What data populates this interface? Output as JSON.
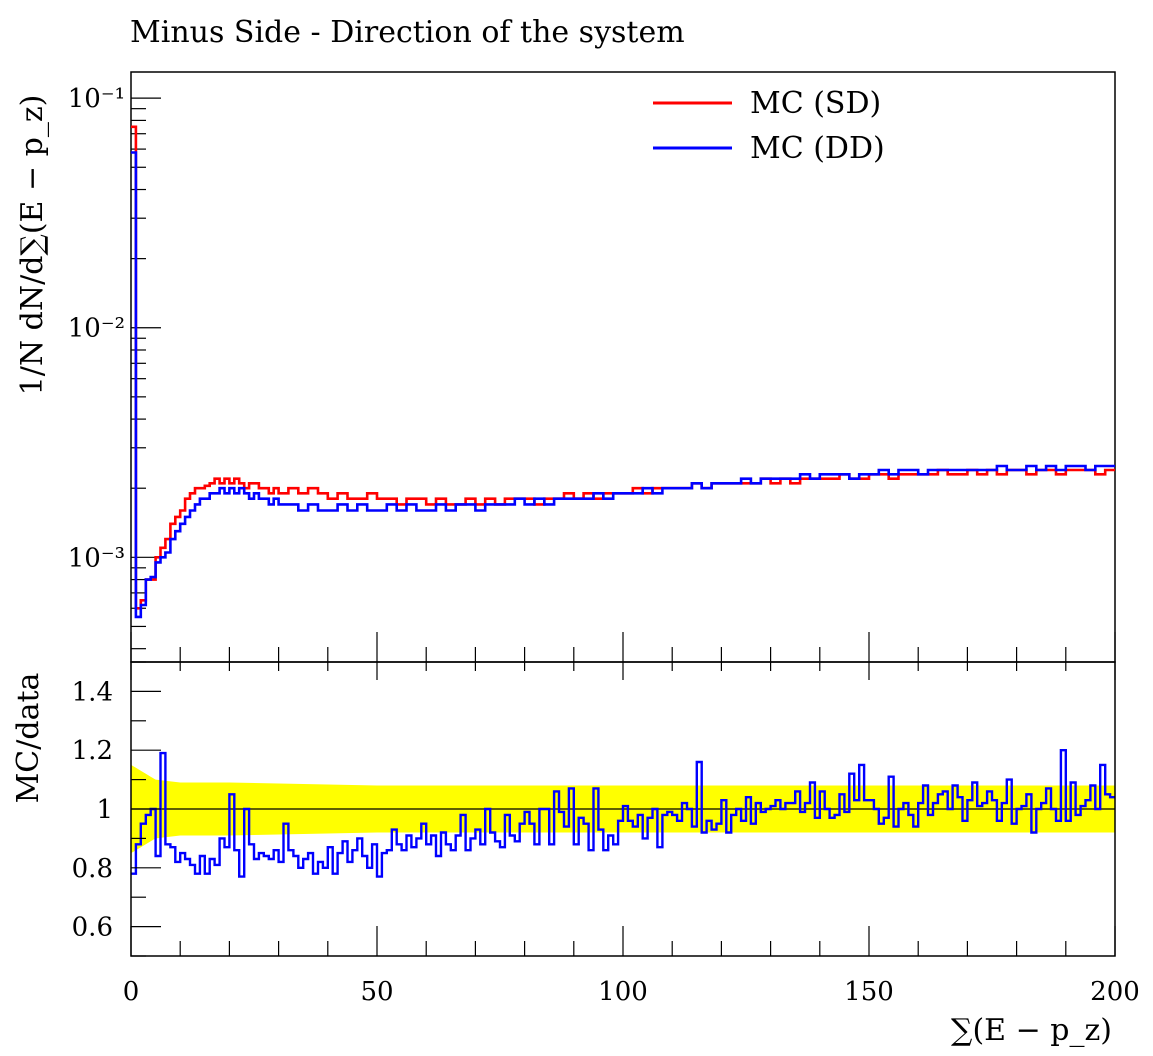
{
  "chart_data": [
    {
      "type": "line",
      "title": "Minus Side - Direction of the system",
      "ylabel": "1/N dN/d∑(E − p_z)",
      "xlabel": "",
      "x_range": [
        0,
        200
      ],
      "ylim": [
        0.00035,
        0.13
      ],
      "y_scale": "log",
      "y_ticks": [
        0.001,
        0.01,
        0.1
      ],
      "y_tick_labels": [
        "10⁻³",
        "10⁻²",
        "10⁻¹"
      ],
      "legend_position": "top-right",
      "series": [
        {
          "name": "MC (SD)",
          "color": "#ff0000",
          "x": [
            0,
            1,
            2,
            3,
            4,
            5,
            6,
            7,
            8,
            9,
            10,
            11,
            12,
            13,
            14,
            15,
            16,
            17,
            18,
            19,
            20,
            21,
            22,
            23,
            24,
            25,
            26,
            27,
            28,
            29,
            30,
            32,
            34,
            36,
            38,
            40,
            42,
            44,
            46,
            48,
            50,
            52,
            54,
            56,
            58,
            60,
            62,
            64,
            66,
            68,
            70,
            72,
            74,
            76,
            78,
            80,
            82,
            84,
            86,
            88,
            90,
            92,
            94,
            96,
            98,
            100,
            102,
            104,
            106,
            108,
            110,
            112,
            114,
            116,
            118,
            120,
            122,
            124,
            126,
            128,
            130,
            132,
            134,
            136,
            138,
            140,
            142,
            144,
            146,
            148,
            150,
            152,
            154,
            156,
            158,
            160,
            162,
            164,
            166,
            168,
            170,
            172,
            174,
            176,
            178,
            180,
            182,
            184,
            186,
            188,
            190,
            192,
            194,
            196,
            198,
            199
          ],
          "values": [
            0.075,
            0.0006,
            0.00065,
            0.0008,
            0.0008,
            0.001,
            0.0011,
            0.0012,
            0.0014,
            0.0015,
            0.0016,
            0.0018,
            0.0019,
            0.002,
            0.002,
            0.00205,
            0.0021,
            0.0022,
            0.0021,
            0.0022,
            0.0021,
            0.0022,
            0.0021,
            0.002,
            0.0021,
            0.0021,
            0.002,
            0.002,
            0.0019,
            0.002,
            0.0019,
            0.002,
            0.0019,
            0.002,
            0.0019,
            0.0018,
            0.0019,
            0.0018,
            0.0018,
            0.0019,
            0.0018,
            0.0018,
            0.0017,
            0.0018,
            0.0018,
            0.0017,
            0.0018,
            0.0017,
            0.0017,
            0.0018,
            0.0017,
            0.0018,
            0.0017,
            0.0018,
            0.0018,
            0.0018,
            0.0017,
            0.0018,
            0.0018,
            0.0019,
            0.0018,
            0.0019,
            0.0018,
            0.0019,
            0.0019,
            0.0019,
            0.002,
            0.0019,
            0.002,
            0.002,
            0.002,
            0.002,
            0.0021,
            0.002,
            0.0021,
            0.0021,
            0.0021,
            0.0021,
            0.0021,
            0.0022,
            0.0021,
            0.0022,
            0.0021,
            0.0022,
            0.0022,
            0.0022,
            0.0022,
            0.0023,
            0.0022,
            0.0022,
            0.0023,
            0.0023,
            0.0022,
            0.0023,
            0.0023,
            0.0023,
            0.0023,
            0.0024,
            0.0023,
            0.0023,
            0.0024,
            0.0023,
            0.0024,
            0.0023,
            0.0024,
            0.0024,
            0.0023,
            0.0024,
            0.0024,
            0.0023,
            0.0024,
            0.0024,
            0.0024,
            0.0023,
            0.0024,
            0.0024
          ]
        },
        {
          "name": "MC (DD)",
          "color": "#0000ff",
          "x": [
            0,
            1,
            2,
            3,
            4,
            5,
            6,
            7,
            8,
            9,
            10,
            11,
            12,
            13,
            14,
            15,
            16,
            17,
            18,
            19,
            20,
            21,
            22,
            23,
            24,
            25,
            26,
            27,
            28,
            29,
            30,
            32,
            34,
            36,
            38,
            40,
            42,
            44,
            46,
            48,
            50,
            52,
            54,
            56,
            58,
            60,
            62,
            64,
            66,
            68,
            70,
            72,
            74,
            76,
            78,
            80,
            82,
            84,
            86,
            88,
            90,
            92,
            94,
            96,
            98,
            100,
            102,
            104,
            106,
            108,
            110,
            112,
            114,
            116,
            118,
            120,
            122,
            124,
            126,
            128,
            130,
            132,
            134,
            136,
            138,
            140,
            142,
            144,
            146,
            148,
            150,
            152,
            154,
            156,
            158,
            160,
            162,
            164,
            166,
            168,
            170,
            172,
            174,
            176,
            178,
            180,
            182,
            184,
            186,
            188,
            190,
            192,
            194,
            196,
            198,
            199
          ],
          "values": [
            0.058,
            0.00055,
            0.00062,
            0.0008,
            0.00082,
            0.00095,
            0.001,
            0.00105,
            0.0012,
            0.0013,
            0.0014,
            0.0015,
            0.0016,
            0.0017,
            0.0018,
            0.0018,
            0.0019,
            0.0019,
            0.002,
            0.0019,
            0.002,
            0.0019,
            0.002,
            0.0019,
            0.0018,
            0.0019,
            0.0018,
            0.0018,
            0.0017,
            0.0018,
            0.0017,
            0.0017,
            0.0016,
            0.0017,
            0.0016,
            0.0016,
            0.0017,
            0.0016,
            0.0017,
            0.0016,
            0.0016,
            0.0017,
            0.0016,
            0.0017,
            0.0016,
            0.0016,
            0.0017,
            0.0016,
            0.0017,
            0.0017,
            0.0016,
            0.0017,
            0.0017,
            0.0017,
            0.0018,
            0.0017,
            0.0018,
            0.0017,
            0.0018,
            0.0018,
            0.0018,
            0.0018,
            0.0019,
            0.0018,
            0.0019,
            0.0019,
            0.0019,
            0.002,
            0.0019,
            0.002,
            0.002,
            0.002,
            0.0021,
            0.002,
            0.0021,
            0.0021,
            0.0021,
            0.0022,
            0.0021,
            0.0022,
            0.0022,
            0.0022,
            0.0022,
            0.0023,
            0.0022,
            0.0023,
            0.0023,
            0.0023,
            0.0022,
            0.0023,
            0.0023,
            0.0024,
            0.0023,
            0.0024,
            0.0024,
            0.0023,
            0.0024,
            0.0024,
            0.0024,
            0.0024,
            0.0024,
            0.0024,
            0.0024,
            0.0025,
            0.0024,
            0.0024,
            0.0025,
            0.0024,
            0.0025,
            0.0024,
            0.0025,
            0.0025,
            0.0024,
            0.0025,
            0.0025,
            0.0025
          ]
        }
      ]
    },
    {
      "type": "line",
      "title": "",
      "ylabel": "MC/data",
      "xlabel": "∑(E − p_z)",
      "x_range": [
        0,
        200
      ],
      "ylim": [
        0.5,
        1.5
      ],
      "y_ticks": [
        0.6,
        0.8,
        1,
        1.2,
        1.4
      ],
      "y_tick_labels": [
        "0.6",
        "0.8",
        "1",
        "1.2",
        "1.4"
      ],
      "x_ticks": [
        0,
        50,
        100,
        150,
        200
      ],
      "x_tick_labels": [
        "0",
        "50",
        "100",
        "150",
        "200"
      ],
      "reference_line": 1,
      "band": {
        "color": "#ffff00",
        "x": [
          0,
          1,
          2,
          3,
          4,
          5,
          10,
          20,
          50,
          100,
          150,
          200
        ],
        "upper": [
          1.15,
          1.14,
          1.13,
          1.12,
          1.11,
          1.1,
          1.09,
          1.09,
          1.08,
          1.08,
          1.08,
          1.08
        ],
        "lower": [
          0.85,
          0.86,
          0.87,
          0.88,
          0.89,
          0.9,
          0.91,
          0.91,
          0.92,
          0.92,
          0.92,
          0.92
        ]
      },
      "series": [
        {
          "name": "MC (DD)",
          "color": "#0000ff",
          "x": [
            0,
            1,
            2,
            3,
            4,
            5,
            6,
            7,
            8,
            9,
            10,
            11,
            12,
            13,
            14,
            15,
            16,
            17,
            18,
            19,
            20,
            21,
            22,
            23,
            24,
            25,
            26,
            27,
            28,
            29,
            30,
            31,
            32,
            33,
            34,
            35,
            36,
            37,
            38,
            39,
            40,
            41,
            42,
            43,
            44,
            45,
            46,
            47,
            48,
            49,
            50,
            51,
            52,
            53,
            54,
            55,
            56,
            57,
            58,
            59,
            60,
            61,
            62,
            63,
            64,
            65,
            66,
            67,
            68,
            69,
            70,
            71,
            72,
            73,
            74,
            75,
            76,
            77,
            78,
            79,
            80,
            81,
            82,
            83,
            84,
            85,
            86,
            87,
            88,
            89,
            90,
            91,
            92,
            93,
            94,
            95,
            96,
            97,
            98,
            99,
            100,
            101,
            102,
            103,
            104,
            105,
            106,
            107,
            108,
            109,
            110,
            111,
            112,
            113,
            114,
            115,
            116,
            117,
            118,
            119,
            120,
            121,
            122,
            123,
            124,
            125,
            126,
            127,
            128,
            129,
            130,
            131,
            132,
            133,
            134,
            135,
            136,
            137,
            138,
            139,
            140,
            141,
            142,
            143,
            144,
            145,
            146,
            147,
            148,
            149,
            150,
            151,
            152,
            153,
            154,
            155,
            156,
            157,
            158,
            159,
            160,
            161,
            162,
            163,
            164,
            165,
            166,
            167,
            168,
            169,
            170,
            171,
            172,
            173,
            174,
            175,
            176,
            177,
            178,
            179,
            180,
            181,
            182,
            183,
            184,
            185,
            186,
            187,
            188,
            189,
            190,
            191,
            192,
            193,
            194,
            195,
            196,
            197,
            198,
            199
          ],
          "values": [
            0.78,
            0.88,
            0.95,
            0.98,
            1.0,
            0.84,
            1.19,
            0.88,
            0.87,
            0.82,
            0.85,
            0.83,
            0.81,
            0.78,
            0.84,
            0.78,
            0.83,
            0.81,
            0.9,
            0.87,
            1.05,
            0.86,
            0.77,
            1.0,
            0.88,
            0.83,
            0.85,
            0.84,
            0.83,
            0.86,
            0.82,
            0.95,
            0.86,
            0.84,
            0.8,
            0.83,
            0.85,
            0.78,
            0.82,
            0.8,
            0.87,
            0.78,
            0.85,
            0.89,
            0.82,
            0.86,
            0.9,
            0.84,
            0.8,
            0.88,
            0.77,
            0.85,
            0.86,
            0.93,
            0.88,
            0.86,
            0.91,
            0.87,
            0.9,
            0.95,
            0.88,
            0.91,
            0.84,
            0.92,
            0.88,
            0.86,
            0.91,
            0.98,
            0.86,
            0.9,
            0.93,
            0.88,
            1.0,
            0.92,
            0.89,
            0.87,
            0.98,
            0.91,
            0.89,
            0.95,
            0.99,
            0.95,
            0.88,
            1.0,
            1.0,
            0.88,
            1.06,
            0.99,
            0.94,
            1.07,
            0.88,
            0.97,
            0.95,
            0.86,
            1.07,
            0.93,
            0.86,
            0.91,
            0.88,
            0.96,
            1.01,
            0.96,
            0.94,
            0.98,
            0.9,
            0.97,
            1.0,
            0.87,
            0.98,
            0.99,
            0.98,
            0.96,
            1.02,
            1.0,
            0.94,
            1.16,
            0.92,
            0.96,
            0.93,
            0.95,
            1.03,
            0.92,
            0.98,
            1.0,
            0.96,
            1.04,
            0.95,
            1.02,
            0.99,
            1.0,
            1.01,
            1.03,
            1.0,
            1.02,
            1.02,
            1.06,
            0.99,
            1.02,
            1.09,
            0.97,
            1.06,
            1.0,
            0.97,
            0.98,
            1.05,
            0.99,
            1.12,
            1.03,
            1.15,
            1.03,
            1.03,
            1.0,
            0.95,
            0.97,
            1.11,
            0.94,
            1.0,
            1.02,
            0.98,
            0.94,
            1.02,
            1.08,
            0.98,
            1.02,
            1.05,
            1.06,
            1.0,
            1.08,
            1.04,
            0.96,
            1.03,
            1.09,
            1.01,
            1.02,
            1.06,
            1.03,
            0.96,
            1.02,
            1.1,
            0.95,
            1.0,
            1.01,
            1.05,
            0.92,
            1.0,
            1.02,
            1.07,
            1.0,
            0.96,
            1.2,
            0.96,
            1.09,
            0.98,
            1.01,
            1.03,
            1.08,
            1.0,
            1.15,
            1.05,
            1.04
          ]
        }
      ]
    }
  ],
  "legend": {
    "sd_label": "MC (SD)",
    "dd_label": "MC (DD)"
  }
}
